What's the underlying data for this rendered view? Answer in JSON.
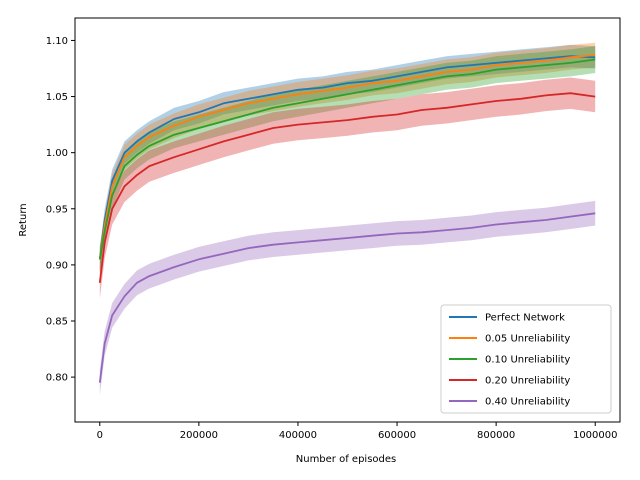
{
  "chart_data": {
    "type": "line",
    "title": "",
    "xlabel": "Number of episodes",
    "ylabel": "Return",
    "xlim": [
      -50000,
      1050000
    ],
    "ylim": [
      0.76,
      1.12
    ],
    "xticks": [
      0,
      200000,
      400000,
      600000,
      800000,
      1000000
    ],
    "xtick_labels": [
      "0",
      "200000",
      "400000",
      "600000",
      "800000",
      "1000000"
    ],
    "yticks": [
      0.8,
      0.85,
      0.9,
      0.95,
      1.0,
      1.05,
      1.1
    ],
    "ytick_labels": [
      "0.80",
      "0.85",
      "0.90",
      "0.95",
      "1.00",
      "1.05",
      "1.10"
    ],
    "grid": false,
    "legend_position": "lower-right",
    "shaded_band": "mean with shaded variability band",
    "x": [
      0,
      10000,
      25000,
      50000,
      75000,
      100000,
      150000,
      200000,
      250000,
      300000,
      350000,
      400000,
      450000,
      500000,
      550000,
      600000,
      650000,
      700000,
      750000,
      800000,
      850000,
      900000,
      950000,
      1000000
    ],
    "series": [
      {
        "name": "Perfect Network",
        "color": "#1f77b4",
        "values": [
          0.905,
          0.94,
          0.975,
          1.0,
          1.01,
          1.018,
          1.03,
          1.036,
          1.044,
          1.048,
          1.052,
          1.056,
          1.058,
          1.062,
          1.064,
          1.068,
          1.072,
          1.076,
          1.078,
          1.08,
          1.082,
          1.084,
          1.086,
          1.085
        ],
        "band": 0.01
      },
      {
        "name": "0.05 Unreliability",
        "color": "#ff7f0e",
        "values": [
          0.905,
          0.935,
          0.97,
          0.996,
          1.006,
          1.014,
          1.024,
          1.032,
          1.038,
          1.044,
          1.048,
          1.052,
          1.055,
          1.058,
          1.062,
          1.064,
          1.068,
          1.072,
          1.074,
          1.078,
          1.08,
          1.082,
          1.085,
          1.087
        ],
        "band": 0.011
      },
      {
        "name": "0.10 Unreliability",
        "color": "#2ca02c",
        "values": [
          0.905,
          0.93,
          0.962,
          0.988,
          0.998,
          1.006,
          1.016,
          1.022,
          1.028,
          1.034,
          1.04,
          1.044,
          1.048,
          1.052,
          1.056,
          1.06,
          1.064,
          1.068,
          1.07,
          1.074,
          1.076,
          1.078,
          1.08,
          1.083
        ],
        "band": 0.012
      },
      {
        "name": "0.20 Unreliability",
        "color": "#d62728",
        "values": [
          0.884,
          0.92,
          0.95,
          0.97,
          0.98,
          0.988,
          0.996,
          1.003,
          1.01,
          1.016,
          1.022,
          1.025,
          1.027,
          1.029,
          1.032,
          1.034,
          1.038,
          1.04,
          1.043,
          1.046,
          1.048,
          1.051,
          1.053,
          1.05
        ],
        "band": 0.014
      },
      {
        "name": "0.40 Unreliability",
        "color": "#9467bd",
        "values": [
          0.795,
          0.83,
          0.855,
          0.872,
          0.884,
          0.89,
          0.898,
          0.905,
          0.91,
          0.915,
          0.918,
          0.92,
          0.922,
          0.924,
          0.926,
          0.928,
          0.929,
          0.931,
          0.933,
          0.936,
          0.938,
          0.94,
          0.943,
          0.946
        ],
        "band": 0.011
      }
    ]
  }
}
